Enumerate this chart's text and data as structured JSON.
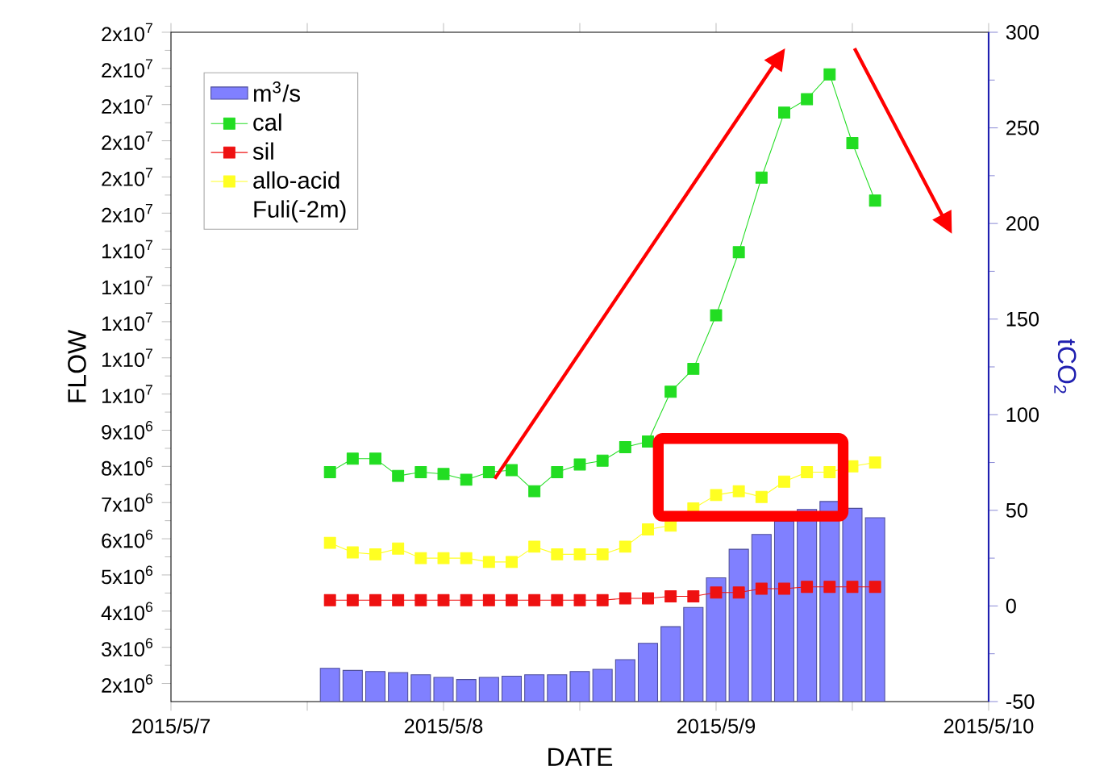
{
  "chart_data": {
    "type": "bar",
    "xlabel": "DATE",
    "ylabel": "FLOW",
    "y2label": "tCO$_{2}$",
    "legend_title": "Fuli(-2m)",
    "legend": "top left",
    "marker": "square",
    "x": [
      "2015-05-07T14:00",
      "2015-05-07T16:00",
      "2015-05-07T18:00",
      "2015-05-07T20:00",
      "2015-05-07T22:00",
      "2015-05-08T00:00",
      "2015-05-08T02:00",
      "2015-05-08T04:00",
      "2015-05-08T06:00",
      "2015-05-08T08:00",
      "2015-05-08T10:00",
      "2015-05-08T12:00",
      "2015-05-08T14:00",
      "2015-05-08T16:00",
      "2015-05-08T18:00",
      "2015-05-08T20:00",
      "2015-05-08T22:00",
      "2015-05-09T00:00",
      "2015-05-09T02:00",
      "2015-05-09T04:00",
      "2015-05-09T06:00",
      "2015-05-09T08:00",
      "2015-05-09T10:00",
      "2015-05-09T12:00",
      "2015-05-09T14:00"
    ],
    "xlim": [
      "2015-05-07",
      "2015-05-10"
    ],
    "xticks": [
      {
        "value": "2015-05-07",
        "label": "2015/5/7"
      },
      {
        "value": "2015-05-07T12:00",
        "label": null
      },
      {
        "value": "2015-05-08",
        "label": "2015/5/8"
      },
      {
        "value": "2015-05-08T12:00",
        "label": null
      },
      {
        "value": "2015-05-09",
        "label": "2015/5/9"
      },
      {
        "value": "2015-05-09T12:00",
        "label": null
      },
      {
        "value": "2015-05-10",
        "label": "2015/5/10"
      }
    ],
    "ylim": [
      1500000,
      20000000
    ],
    "yticks": [
      {
        "value": 2000000,
        "label": "2x10$^{6}$"
      },
      {
        "value": 3000000,
        "label": "3x10$^{6}$"
      },
      {
        "value": 4000000,
        "label": "4x10$^{6}$"
      },
      {
        "value": 5000000,
        "label": "5x10$^{6}$"
      },
      {
        "value": 6000000,
        "label": "6x10$^{6}$"
      },
      {
        "value": 7000000,
        "label": "7x10$^{6}$"
      },
      {
        "value": 8000000,
        "label": "8x10$^{6}$"
      },
      {
        "value": 9000000,
        "label": "9x10$^{6}$"
      },
      {
        "value": 10000000,
        "label": "1x10$^{7}$"
      },
      {
        "value": 11000000,
        "label": "1x10$^{7}$"
      },
      {
        "value": 12000000,
        "label": "1x10$^{7}$"
      },
      {
        "value": 13000000,
        "label": "1x10$^{7}$"
      },
      {
        "value": 14000000,
        "label": "1x10$^{7}$"
      },
      {
        "value": 15000000,
        "label": "2x10$^{7}$"
      },
      {
        "value": 16000000,
        "label": "2x10$^{7}$"
      },
      {
        "value": 17000000,
        "label": "2x10$^{7}$"
      },
      {
        "value": 18000000,
        "label": "2x10$^{7}$"
      },
      {
        "value": 19000000,
        "label": "2x10$^{7}$"
      },
      {
        "value": 20000000,
        "label": "2x10$^{7}$"
      }
    ],
    "y2lim": [
      -50,
      300
    ],
    "y2ticks": [
      -50,
      0,
      50,
      100,
      150,
      200,
      250,
      300
    ],
    "series": [
      {
        "name": "m$^{3}$/s",
        "color": "#8080ff",
        "values": [
          2420000,
          2360000,
          2330000,
          2300000,
          2240000,
          2170000,
          2110000,
          2170000,
          2200000,
          2240000,
          2240000,
          2330000,
          2390000,
          2660000,
          3110000,
          3570000,
          4100000,
          4920000,
          5710000,
          6120000,
          6480000,
          6810000,
          7030000,
          6840000,
          6580000
        ]
      },
      {
        "name": "cal",
        "type": "line",
        "axis": "y2",
        "color": "#22dd22",
        "values": [
          70,
          77,
          77,
          68,
          70,
          69,
          66,
          70,
          71,
          60,
          70,
          74,
          76,
          83,
          86,
          112,
          124,
          152,
          185,
          224,
          258,
          265,
          278,
          242,
          212
        ]
      },
      {
        "name": "sil",
        "type": "line",
        "axis": "y2",
        "color": "#ee1111",
        "values": [
          3,
          3,
          3,
          3,
          3,
          3,
          3,
          3,
          3,
          3,
          3,
          3,
          3,
          4,
          4,
          5,
          5,
          7,
          7,
          9,
          9,
          10,
          10,
          10,
          10
        ]
      },
      {
        "name": "allo-acid",
        "type": "line",
        "axis": "y2",
        "color": "#ffff22",
        "values": [
          33,
          28,
          27,
          30,
          25,
          25,
          25,
          23,
          23,
          31,
          27,
          27,
          27,
          31,
          40,
          42,
          51,
          58,
          60,
          57,
          65,
          70,
          70,
          73,
          75
        ]
      }
    ]
  }
}
